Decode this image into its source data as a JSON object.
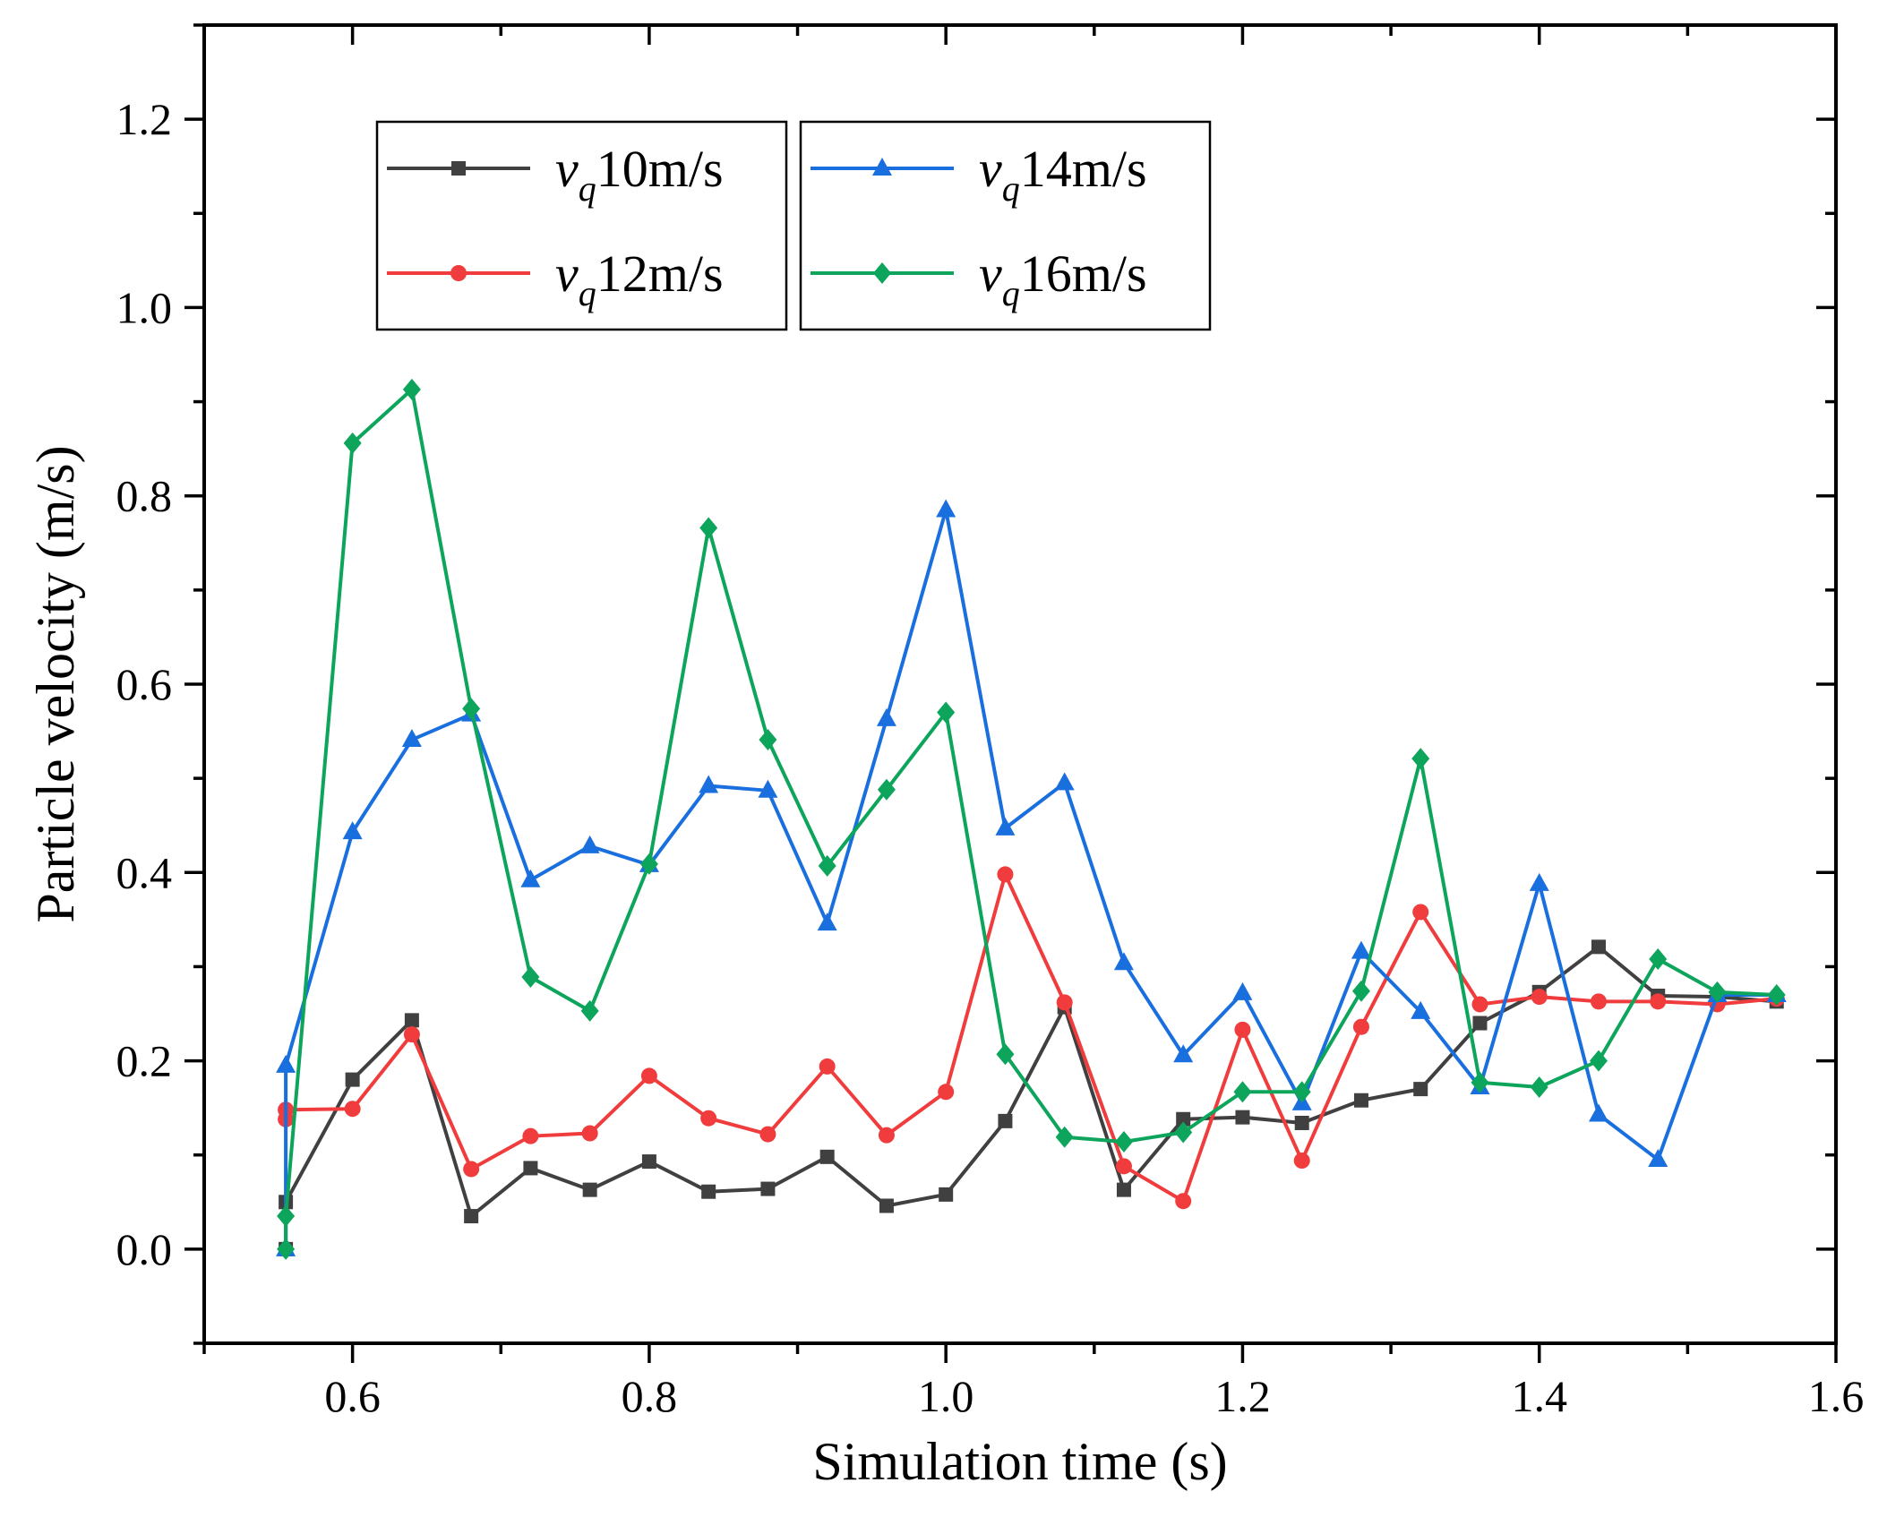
{
  "chart_data": {
    "type": "line",
    "xlabel": "Simulation time (s)",
    "ylabel": "Particle velocity (m/s)",
    "xlim": [
      0.5,
      1.6
    ],
    "ylim": [
      -0.1,
      1.3
    ],
    "xticks": [
      0.6,
      0.8,
      1.0,
      1.2,
      1.4,
      1.6
    ],
    "xtick_labels": [
      "0.6",
      "0.8",
      "1.0",
      "1.2",
      "1.4",
      "1.6"
    ],
    "yticks": [
      0.0,
      0.2,
      0.4,
      0.6,
      0.8,
      1.0,
      1.2
    ],
    "ytick_labels": [
      "0.0",
      "0.2",
      "0.4",
      "0.6",
      "0.8",
      "1.0",
      "1.2"
    ],
    "grid": false,
    "legend_position": "top-left",
    "series": [
      {
        "name_var": "v",
        "name_sub": "q",
        "name_value": "10m/s",
        "color": "#404040",
        "marker": "square",
        "x": [
          0.555,
          0.555,
          0.6,
          0.64,
          0.68,
          0.72,
          0.76,
          0.8,
          0.84,
          0.88,
          0.92,
          0.96,
          1.0,
          1.04,
          1.08,
          1.12,
          1.16,
          1.2,
          1.24,
          1.28,
          1.32,
          1.36,
          1.4,
          1.44,
          1.48,
          1.52,
          1.56
        ],
        "y": [
          0.0,
          0.05,
          0.18,
          0.243,
          0.035,
          0.086,
          0.063,
          0.093,
          0.061,
          0.064,
          0.098,
          0.046,
          0.058,
          0.136,
          0.257,
          0.063,
          0.138,
          0.14,
          0.134,
          0.158,
          0.17,
          0.24,
          0.273,
          0.321,
          0.269,
          0.268,
          0.263
        ]
      },
      {
        "name_var": "v",
        "name_sub": "q",
        "name_value": "12m/s",
        "color": "#f03c3c",
        "marker": "circle",
        "x": [
          0.555,
          0.555,
          0.6,
          0.64,
          0.68,
          0.72,
          0.76,
          0.8,
          0.84,
          0.88,
          0.92,
          0.96,
          1.0,
          1.04,
          1.08,
          1.12,
          1.16,
          1.2,
          1.24,
          1.28,
          1.32,
          1.36,
          1.4,
          1.44,
          1.48,
          1.52,
          1.56
        ],
        "y": [
          0.138,
          0.148,
          0.149,
          0.228,
          0.085,
          0.12,
          0.123,
          0.184,
          0.139,
          0.122,
          0.194,
          0.121,
          0.167,
          0.398,
          0.262,
          0.088,
          0.051,
          0.233,
          0.094,
          0.236,
          0.358,
          0.26,
          0.268,
          0.263,
          0.263,
          0.26,
          0.266
        ]
      },
      {
        "name_var": "v",
        "name_sub": "q",
        "name_value": "14m/s",
        "color": "#1a6fdf",
        "marker": "triangle",
        "x": [
          0.555,
          0.555,
          0.6,
          0.64,
          0.68,
          0.72,
          0.76,
          0.8,
          0.84,
          0.88,
          0.92,
          0.96,
          1.0,
          1.04,
          1.08,
          1.12,
          1.16,
          1.2,
          1.24,
          1.28,
          1.32,
          1.36,
          1.4,
          1.44,
          1.48,
          1.52,
          1.56
        ],
        "y": [
          0.0,
          0.195,
          0.443,
          0.541,
          0.568,
          0.392,
          0.428,
          0.408,
          0.492,
          0.487,
          0.346,
          0.563,
          0.785,
          0.447,
          0.495,
          0.304,
          0.206,
          0.272,
          0.155,
          0.316,
          0.252,
          0.172,
          0.388,
          0.143,
          0.095,
          0.27,
          0.27
        ]
      },
      {
        "name_var": "v",
        "name_sub": "q",
        "name_value": "16m/s",
        "color": "#0ca55b",
        "marker": "diamond",
        "x": [
          0.555,
          0.555,
          0.6,
          0.64,
          0.68,
          0.72,
          0.76,
          0.8,
          0.84,
          0.88,
          0.92,
          0.96,
          1.0,
          1.04,
          1.08,
          1.12,
          1.16,
          1.2,
          1.24,
          1.28,
          1.32,
          1.36,
          1.4,
          1.44,
          1.48,
          1.52,
          1.56
        ],
        "y": [
          0.0,
          0.035,
          0.856,
          0.913,
          0.574,
          0.289,
          0.253,
          0.409,
          0.766,
          0.541,
          0.407,
          0.488,
          0.57,
          0.207,
          0.119,
          0.114,
          0.124,
          0.167,
          0.167,
          0.274,
          0.521,
          0.177,
          0.172,
          0.2,
          0.308,
          0.273,
          0.27
        ]
      }
    ]
  }
}
